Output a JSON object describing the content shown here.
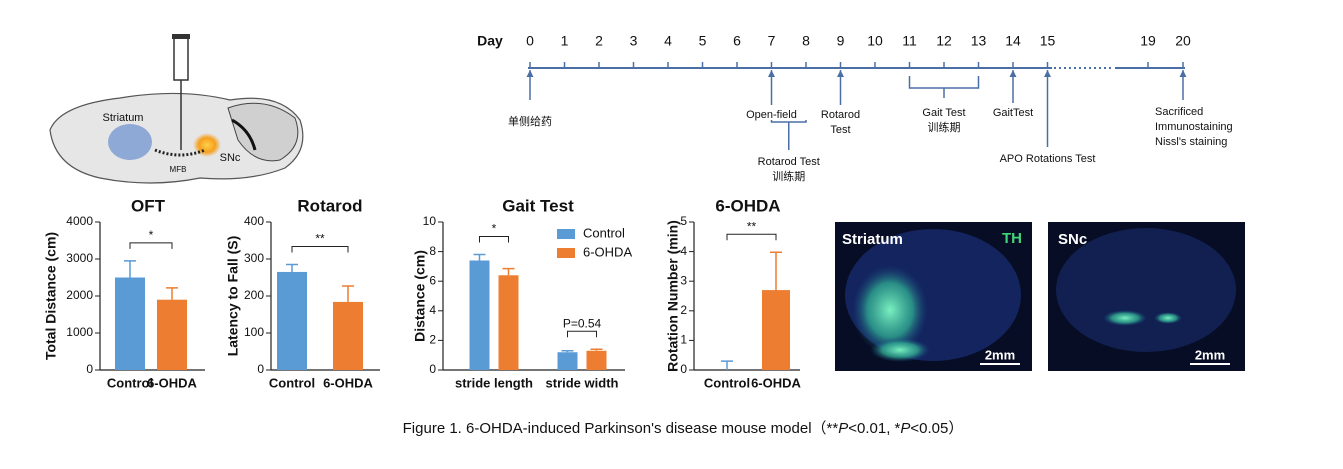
{
  "brain_diagram": {
    "labels": [
      "Striatum",
      "MFB",
      "SNc"
    ]
  },
  "timeline": {
    "label": "Day",
    "days": [
      0,
      1,
      2,
      3,
      4,
      5,
      6,
      7,
      8,
      9,
      10,
      11,
      12,
      13,
      14,
      15,
      19,
      20
    ],
    "events": [
      {
        "days": [
          0
        ],
        "lines": [
          "单侧给药"
        ]
      },
      {
        "days": [
          7
        ],
        "lines": [
          "Open-field"
        ]
      },
      {
        "days": [
          9
        ],
        "lines": [
          "Rotarod",
          "Test"
        ]
      },
      {
        "days": [
          11,
          13
        ],
        "lines": [
          "Gait Test",
          "训练期"
        ]
      },
      {
        "days": [
          14
        ],
        "lines": [
          "GaitTest"
        ]
      },
      {
        "days": [
          15
        ],
        "lines": [
          "APO Rotations Test"
        ]
      },
      {
        "days": [
          20
        ],
        "lines": [
          "Sacrificed",
          "Immunostaining",
          "Nissl's staining"
        ]
      },
      {
        "days": [
          7,
          8
        ],
        "lines": [
          "Rotarod Test",
          "训练期"
        ]
      }
    ]
  },
  "chart_data": [
    {
      "type": "bar",
      "title": "OFT",
      "ylabel": "Total Distance (cm)",
      "categories": [
        "Control",
        "6-OHDA"
      ],
      "values": [
        2500,
        1900
      ],
      "errors": [
        450,
        320
      ],
      "colors": [
        "#5b9bd5",
        "#ed7d31"
      ],
      "ylim": [
        0,
        4000
      ],
      "yticks": [
        0,
        1000,
        2000,
        3000,
        4000
      ],
      "annotations": [
        "*"
      ]
    },
    {
      "type": "bar",
      "title": "Rotarod",
      "ylabel": "Latency to Fall (S)",
      "categories": [
        "Control",
        "6-OHDA"
      ],
      "values": [
        265,
        184
      ],
      "errors": [
        20,
        43
      ],
      "colors": [
        "#5b9bd5",
        "#ed7d31"
      ],
      "ylim": [
        0,
        400
      ],
      "yticks": [
        0,
        100,
        200,
        300,
        400
      ],
      "annotations": [
        "**"
      ]
    },
    {
      "type": "bar",
      "title": "Gait Test",
      "ylabel": "Distance (cm)",
      "categories": [
        "stride length",
        "stride width"
      ],
      "series": [
        {
          "name": "Control",
          "color": "#5b9bd5",
          "values": [
            7.4,
            1.2
          ],
          "errors": [
            0.4,
            0.1
          ]
        },
        {
          "name": "6-OHDA",
          "color": "#ed7d31",
          "values": [
            6.4,
            1.3
          ],
          "errors": [
            0.45,
            0.1
          ]
        }
      ],
      "ylim": [
        0,
        10
      ],
      "yticks": [
        0,
        2,
        4,
        6,
        8,
        10
      ],
      "annotations": [
        "*",
        "P=0.54"
      ],
      "legend": "top-right"
    },
    {
      "type": "bar",
      "title": "6-OHDA",
      "ylabel": "Rotation Number (min)",
      "categories": [
        "Control",
        "6-OHDA"
      ],
      "values": [
        0,
        2.7
      ],
      "errors": [
        0.3,
        1.28
      ],
      "colors": [
        "#5b9bd5",
        "#ed7d31"
      ],
      "ylim": [
        0,
        5
      ],
      "yticks": [
        0,
        1,
        2,
        3,
        4,
        5
      ],
      "annotations": [
        "**"
      ]
    }
  ],
  "micrographs": [
    {
      "label": "Striatum",
      "stain": "TH",
      "scale": "2mm"
    },
    {
      "label": "SNc",
      "scale": "2mm"
    }
  ],
  "caption": [
    "Figure 1. 6-OHDA-induced Parkinson's disease mouse model（**",
    "P",
    "<0.01, *",
    "P",
    "<0.05）"
  ]
}
